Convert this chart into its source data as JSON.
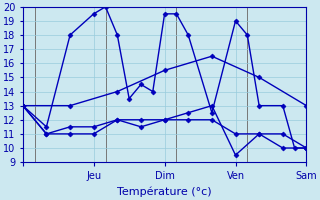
{
  "background_color": "#cce8f0",
  "grid_color": "#99ccdd",
  "line_color": "#0000bb",
  "marker": "D",
  "marker_size": 2.5,
  "xlabel": "Température (°c)",
  "xlim": [
    0,
    24
  ],
  "ylim": [
    9,
    20
  ],
  "yticks": [
    9,
    10,
    11,
    12,
    13,
    14,
    15,
    16,
    17,
    18,
    19,
    20
  ],
  "xtick_positions": [
    0,
    6,
    12,
    18,
    24
  ],
  "xtick_labels": [
    "",
    "Jeu",
    "Dim",
    "Ven",
    "Sam"
  ],
  "vline_positions": [
    1,
    7,
    13,
    19
  ],
  "series": [
    {
      "x": [
        0,
        2,
        4,
        6,
        7,
        8,
        9,
        10,
        11,
        12,
        13,
        14,
        16,
        18,
        19,
        20,
        22,
        23,
        24
      ],
      "y": [
        13,
        11.5,
        18,
        19.5,
        20,
        18,
        13.5,
        14.5,
        14,
        19.5,
        19.5,
        18,
        12.5,
        19,
        18,
        13,
        13,
        10,
        10
      ]
    },
    {
      "x": [
        0,
        2,
        4,
        6,
        8,
        10,
        12,
        14,
        16,
        18,
        20,
        22,
        24
      ],
      "y": [
        13,
        11,
        11,
        11,
        12,
        12,
        12,
        12.5,
        13,
        9.5,
        11,
        10,
        10
      ]
    },
    {
      "x": [
        0,
        2,
        4,
        6,
        8,
        10,
        12,
        14,
        16,
        18,
        20,
        22,
        24
      ],
      "y": [
        13,
        11,
        11.5,
        11.5,
        12,
        11.5,
        12,
        12,
        12,
        11,
        11,
        11,
        10
      ]
    },
    {
      "x": [
        0,
        4,
        8,
        12,
        16,
        20,
        24
      ],
      "y": [
        13,
        13,
        14,
        15.5,
        16.5,
        15,
        13
      ]
    }
  ]
}
